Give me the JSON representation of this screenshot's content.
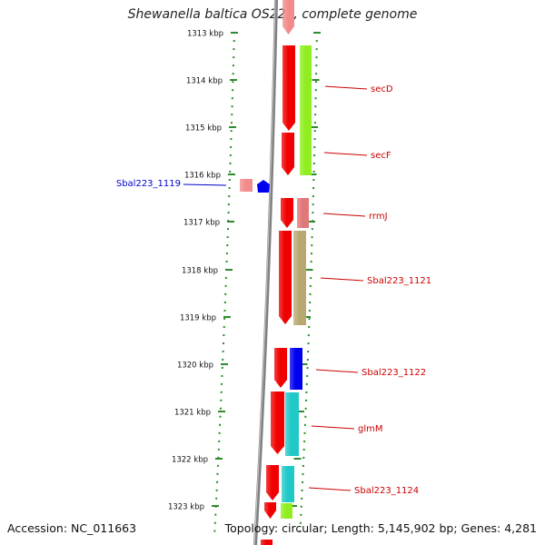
{
  "title": "Shewanella baltica OS223, complete genome",
  "accession": "Accession: NC_011663",
  "summary": "Topology: circular; Length: 5,145,902 bp; Genes: 4,281",
  "ruler_labels": [
    "1313 kbp",
    "1314 kbp",
    "1315 kbp",
    "1316 kbp",
    "1317 kbp",
    "1318 kbp",
    "1319 kbp",
    "1320 kbp",
    "1321 kbp",
    "1322 kbp",
    "1323 kbp"
  ],
  "gene_labels": [
    "secD",
    "secF",
    "rrmJ",
    "Sbal223_1121",
    "Sbal223_1122",
    "glmM",
    "Sbal223_1124"
  ],
  "left_gene_label": "Sbal223_1119",
  "colors": {
    "backbone": "#808080",
    "cds": "#f00000",
    "cds_light": "#f28c8c",
    "ruler": "#2e8b2e",
    "label_red": "#cc0000",
    "label_blue": "#0000cc",
    "gene_green": "#90ee20",
    "gene_rose": "#e07878",
    "gene_olive": "#b8a870",
    "gene_blue": "#0000f0",
    "gene_cyan": "#20c8c8"
  }
}
